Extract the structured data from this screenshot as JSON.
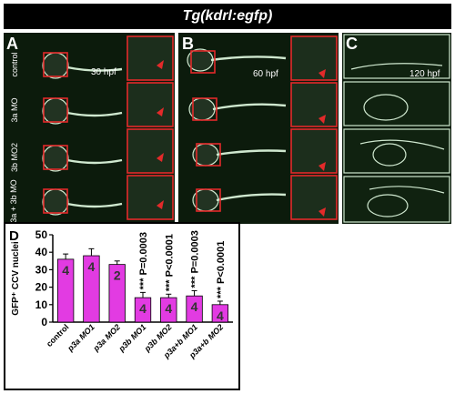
{
  "header": {
    "title": "Tg(kdrl:egfp)"
  },
  "panels": {
    "A": {
      "label": "A",
      "stage": "30 hpf",
      "row_labels": [
        "control",
        "3a MO",
        "3b MO2",
        "3a + 3b MO"
      ]
    },
    "B": {
      "label": "B",
      "stage": "60 hpf"
    },
    "C": {
      "label": "C",
      "stage": "120 hpf"
    }
  },
  "chart_data": {
    "type": "bar",
    "panel_label": "D",
    "ylabel": "GFP⁺ CCV nuclei",
    "categories": [
      "control",
      "p3a MO1",
      "p3a MO2",
      "p3b MO1",
      "p3b MO2",
      "p3a+b MO1",
      "p3a+b MO2"
    ],
    "values": [
      36,
      38,
      33,
      14,
      14,
      15,
      10
    ],
    "errors": [
      3,
      4,
      2,
      3,
      2,
      3,
      2
    ],
    "n_labels": [
      "4",
      "4",
      "2",
      "4",
      "4",
      "4",
      "4"
    ],
    "annotations": [
      "",
      "",
      "",
      "*** P=0.0003",
      "*** P<0.0001",
      "*** P=0.0003",
      "*** P<0.0001"
    ],
    "ylim": [
      0,
      50
    ],
    "yticks": [
      0,
      10,
      20,
      30,
      40,
      50
    ],
    "bar_color": "#e23be2"
  }
}
